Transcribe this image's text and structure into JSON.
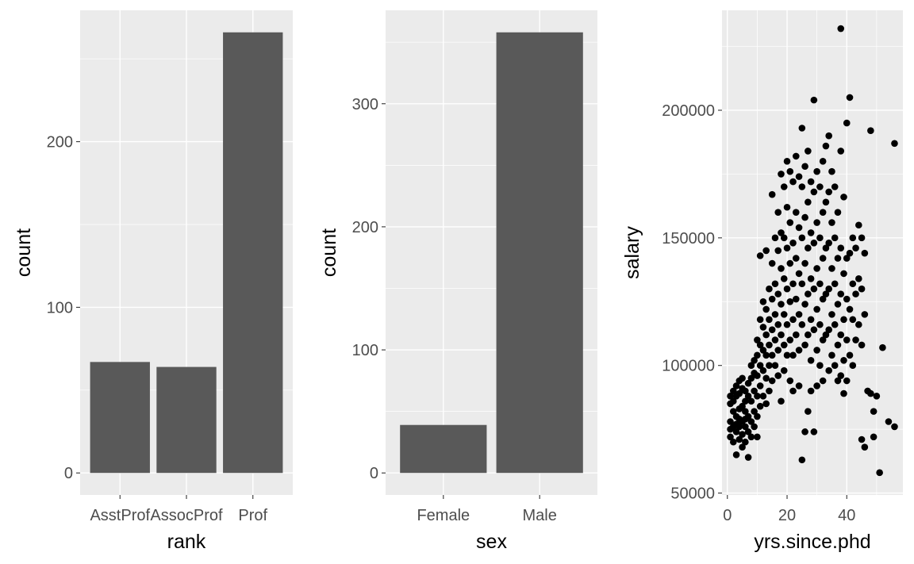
{
  "colors": {
    "panel_background": "#ebebeb",
    "gridline": "#ffffff",
    "bar_fill": "#595959",
    "point_fill": "#000000",
    "tick_text": "#4d4d4d"
  },
  "chart_data": [
    {
      "type": "bar",
      "xlabel": "rank",
      "ylabel": "count",
      "categories": [
        "AsstProf",
        "AssocProf",
        "Prof"
      ],
      "values": [
        67,
        64,
        266
      ],
      "ylim": [
        -13.3,
        279.3
      ],
      "yticks": [
        0,
        100,
        200
      ],
      "grid": true
    },
    {
      "type": "bar",
      "xlabel": "sex",
      "ylabel": "count",
      "categories": [
        "Female",
        "Male"
      ],
      "values": [
        39,
        358
      ],
      "ylim": [
        -17.9,
        375.9
      ],
      "yticks": [
        0,
        100,
        200,
        300
      ],
      "grid": true
    },
    {
      "type": "scatter",
      "xlabel": "yrs.since.phd",
      "ylabel": "salary",
      "xlim": [
        -1.8,
        58.8
      ],
      "ylim": [
        49246,
        239158
      ],
      "xticks": [
        0,
        20,
        40
      ],
      "yticks": [
        50000,
        100000,
        150000,
        200000
      ],
      "grid": true,
      "points": [
        [
          1,
          88000
        ],
        [
          1,
          78000
        ],
        [
          1,
          72000
        ],
        [
          1,
          85000
        ],
        [
          1,
          75000
        ],
        [
          2,
          90000
        ],
        [
          2,
          82000
        ],
        [
          2,
          76000
        ],
        [
          2,
          70000
        ],
        [
          2,
          86000
        ],
        [
          3,
          92000
        ],
        [
          3,
          80000
        ],
        [
          3,
          74000
        ],
        [
          3,
          88000
        ],
        [
          3,
          65000
        ],
        [
          3,
          77000
        ],
        [
          4,
          94000
        ],
        [
          4,
          83000
        ],
        [
          4,
          79000
        ],
        [
          4,
          71000
        ],
        [
          4,
          89000
        ],
        [
          4,
          76000
        ],
        [
          5,
          91000
        ],
        [
          5,
          84000
        ],
        [
          5,
          78000
        ],
        [
          5,
          73000
        ],
        [
          5,
          68000
        ],
        [
          5,
          95000
        ],
        [
          6,
          90000
        ],
        [
          6,
          82000
        ],
        [
          6,
          76000
        ],
        [
          6,
          70000
        ],
        [
          6,
          86000
        ],
        [
          6,
          79000
        ],
        [
          7,
          93000
        ],
        [
          7,
          80000
        ],
        [
          7,
          74000
        ],
        [
          7,
          64000
        ],
        [
          7,
          88000
        ],
        [
          8,
          100000
        ],
        [
          8,
          86000
        ],
        [
          8,
          78000
        ],
        [
          8,
          72000
        ],
        [
          8,
          95000
        ],
        [
          9,
          102000
        ],
        [
          9,
          90000
        ],
        [
          9,
          82000
        ],
        [
          9,
          76000
        ],
        [
          9,
          97000
        ],
        [
          10,
          110000
        ],
        [
          10,
          104000
        ],
        [
          10,
          96000
        ],
        [
          10,
          88000
        ],
        [
          10,
          80000
        ],
        [
          10,
          72000
        ],
        [
          11,
          118000
        ],
        [
          11,
          108000
        ],
        [
          11,
          100000
        ],
        [
          11,
          92000
        ],
        [
          11,
          84000
        ],
        [
          11,
          143000
        ],
        [
          12,
          125000
        ],
        [
          12,
          115000
        ],
        [
          12,
          106000
        ],
        [
          12,
          98000
        ],
        [
          12,
          88000
        ],
        [
          13,
          145000
        ],
        [
          13,
          122000
        ],
        [
          13,
          112000
        ],
        [
          13,
          104000
        ],
        [
          13,
          95000
        ],
        [
          13,
          85000
        ],
        [
          14,
          130000
        ],
        [
          14,
          118000
        ],
        [
          14,
          108000
        ],
        [
          14,
          100000
        ],
        [
          14,
          90000
        ],
        [
          15,
          167000
        ],
        [
          15,
          140000
        ],
        [
          15,
          126000
        ],
        [
          15,
          114000
        ],
        [
          15,
          104000
        ],
        [
          15,
          94000
        ],
        [
          16,
          150000
        ],
        [
          16,
          132000
        ],
        [
          16,
          120000
        ],
        [
          16,
          110000
        ],
        [
          16,
          100000
        ],
        [
          17,
          160000
        ],
        [
          17,
          145000
        ],
        [
          17,
          128000
        ],
        [
          17,
          116000
        ],
        [
          17,
          106000
        ],
        [
          17,
          96000
        ],
        [
          18,
          175000
        ],
        [
          18,
          152000
        ],
        [
          18,
          138000
        ],
        [
          18,
          124000
        ],
        [
          18,
          112000
        ],
        [
          18,
          86000
        ],
        [
          19,
          170000
        ],
        [
          19,
          150000
        ],
        [
          19,
          134000
        ],
        [
          19,
          120000
        ],
        [
          19,
          108000
        ],
        [
          19,
          98000
        ],
        [
          20,
          180000
        ],
        [
          20,
          162000
        ],
        [
          20,
          146000
        ],
        [
          20,
          130000
        ],
        [
          20,
          116000
        ],
        [
          20,
          104000
        ],
        [
          21,
          176000
        ],
        [
          21,
          156000
        ],
        [
          21,
          140000
        ],
        [
          21,
          125000
        ],
        [
          21,
          110000
        ],
        [
          21,
          94000
        ],
        [
          22,
          172000
        ],
        [
          22,
          148000
        ],
        [
          22,
          132000
        ],
        [
          22,
          118000
        ],
        [
          22,
          104000
        ],
        [
          22,
          90000
        ],
        [
          23,
          182000
        ],
        [
          23,
          160000
        ],
        [
          23,
          142000
        ],
        [
          23,
          126000
        ],
        [
          23,
          112000
        ],
        [
          24,
          174000
        ],
        [
          24,
          154000
        ],
        [
          24,
          136000
        ],
        [
          24,
          120000
        ],
        [
          24,
          106000
        ],
        [
          24,
          92000
        ],
        [
          25,
          193000
        ],
        [
          25,
          170000
        ],
        [
          25,
          150000
        ],
        [
          25,
          132000
        ],
        [
          25,
          116000
        ],
        [
          25,
          63000
        ],
        [
          26,
          178000
        ],
        [
          26,
          158000
        ],
        [
          26,
          140000
        ],
        [
          26,
          124000
        ],
        [
          26,
          108000
        ],
        [
          26,
          74000
        ],
        [
          27,
          184000
        ],
        [
          27,
          164000
        ],
        [
          27,
          146000
        ],
        [
          27,
          128000
        ],
        [
          27,
          112000
        ],
        [
          27,
          82000
        ],
        [
          28,
          172000
        ],
        [
          28,
          152000
        ],
        [
          28,
          134000
        ],
        [
          28,
          118000
        ],
        [
          28,
          102000
        ],
        [
          28,
          90000
        ],
        [
          29,
          204000
        ],
        [
          29,
          168000
        ],
        [
          29,
          148000
        ],
        [
          29,
          130000
        ],
        [
          29,
          114000
        ],
        [
          29,
          74000
        ],
        [
          30,
          176000
        ],
        [
          30,
          156000
        ],
        [
          30,
          138000
        ],
        [
          30,
          122000
        ],
        [
          30,
          106000
        ],
        [
          30,
          92000
        ],
        [
          31,
          170000
        ],
        [
          31,
          150000
        ],
        [
          31,
          132000
        ],
        [
          31,
          116000
        ],
        [
          31,
          100000
        ],
        [
          32,
          180000
        ],
        [
          32,
          160000
        ],
        [
          32,
          142000
        ],
        [
          32,
          126000
        ],
        [
          32,
          110000
        ],
        [
          32,
          94000
        ],
        [
          33,
          186000
        ],
        [
          33,
          164000
        ],
        [
          33,
          146000
        ],
        [
          33,
          128000
        ],
        [
          33,
          112000
        ],
        [
          34,
          190000
        ],
        [
          34,
          168000
        ],
        [
          34,
          148000
        ],
        [
          34,
          130000
        ],
        [
          34,
          114000
        ],
        [
          34,
          98000
        ],
        [
          35,
          176000
        ],
        [
          35,
          156000
        ],
        [
          35,
          138000
        ],
        [
          35,
          120000
        ],
        [
          35,
          104000
        ],
        [
          36,
          170000
        ],
        [
          36,
          150000
        ],
        [
          36,
          132000
        ],
        [
          36,
          116000
        ],
        [
          36,
          100000
        ],
        [
          37,
          160000
        ],
        [
          37,
          142000
        ],
        [
          37,
          124000
        ],
        [
          37,
          108000
        ],
        [
          37,
          94000
        ],
        [
          38,
          232000
        ],
        [
          38,
          184000
        ],
        [
          38,
          146000
        ],
        [
          38,
          128000
        ],
        [
          38,
          112000
        ],
        [
          38,
          96000
        ],
        [
          39,
          166000
        ],
        [
          39,
          136000
        ],
        [
          39,
          118000
        ],
        [
          39,
          102000
        ],
        [
          39,
          89000
        ],
        [
          40,
          195000
        ],
        [
          40,
          142000
        ],
        [
          40,
          126000
        ],
        [
          40,
          110000
        ],
        [
          40,
          94000
        ],
        [
          41,
          205000
        ],
        [
          41,
          144000
        ],
        [
          41,
          122000
        ],
        [
          41,
          104000
        ],
        [
          42,
          150000
        ],
        [
          42,
          132000
        ],
        [
          42,
          118000
        ],
        [
          42,
          100000
        ],
        [
          43,
          146000
        ],
        [
          43,
          128000
        ],
        [
          43,
          110000
        ],
        [
          44,
          155000
        ],
        [
          44,
          134000
        ],
        [
          44,
          116000
        ],
        [
          45,
          150000
        ],
        [
          45,
          130000
        ],
        [
          45,
          108000
        ],
        [
          45,
          71000
        ],
        [
          46,
          144000
        ],
        [
          46,
          120000
        ],
        [
          46,
          68000
        ],
        [
          47,
          90000
        ],
        [
          48,
          192000
        ],
        [
          48,
          89000
        ],
        [
          49,
          82000
        ],
        [
          49,
          72000
        ],
        [
          50,
          88000
        ],
        [
          51,
          58000
        ],
        [
          52,
          107000
        ],
        [
          54,
          78000
        ],
        [
          56,
          187000
        ],
        [
          56,
          76000
        ]
      ]
    }
  ]
}
